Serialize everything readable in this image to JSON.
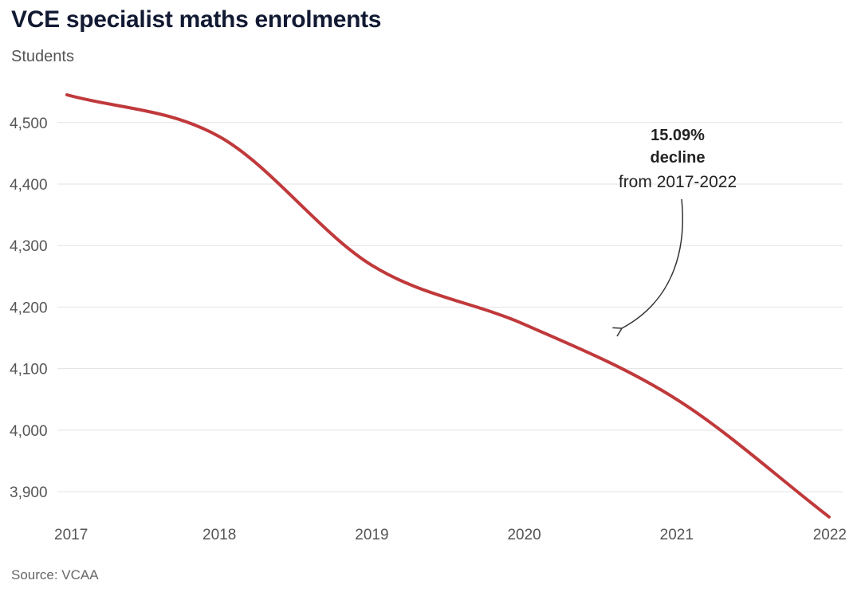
{
  "chart_data": {
    "type": "line",
    "title": "VCE specialist maths enrolments",
    "ylabel": "Students",
    "xlabel": "",
    "x": [
      "2017",
      "2018",
      "2019",
      "2020",
      "2021",
      "2022"
    ],
    "series": [
      {
        "name": "VCE specialist maths enrolments",
        "color": "#c0393b",
        "values": [
          4545,
          4477,
          4268,
          4172,
          4050,
          3859
        ]
      }
    ],
    "yticks": [
      3900,
      4000,
      4100,
      4200,
      4300,
      4400,
      4500
    ],
    "ytick_labels": [
      "3,900",
      "4,000",
      "4,100",
      "4,200",
      "4,300",
      "4,400",
      "4,500"
    ],
    "ylim": [
      3860,
      4545
    ],
    "grid": true,
    "legend": "none",
    "annotation": {
      "line1": "15.09%",
      "line2": "decline",
      "line3": "from 2017-2022"
    },
    "source": "Source: VCAA"
  }
}
